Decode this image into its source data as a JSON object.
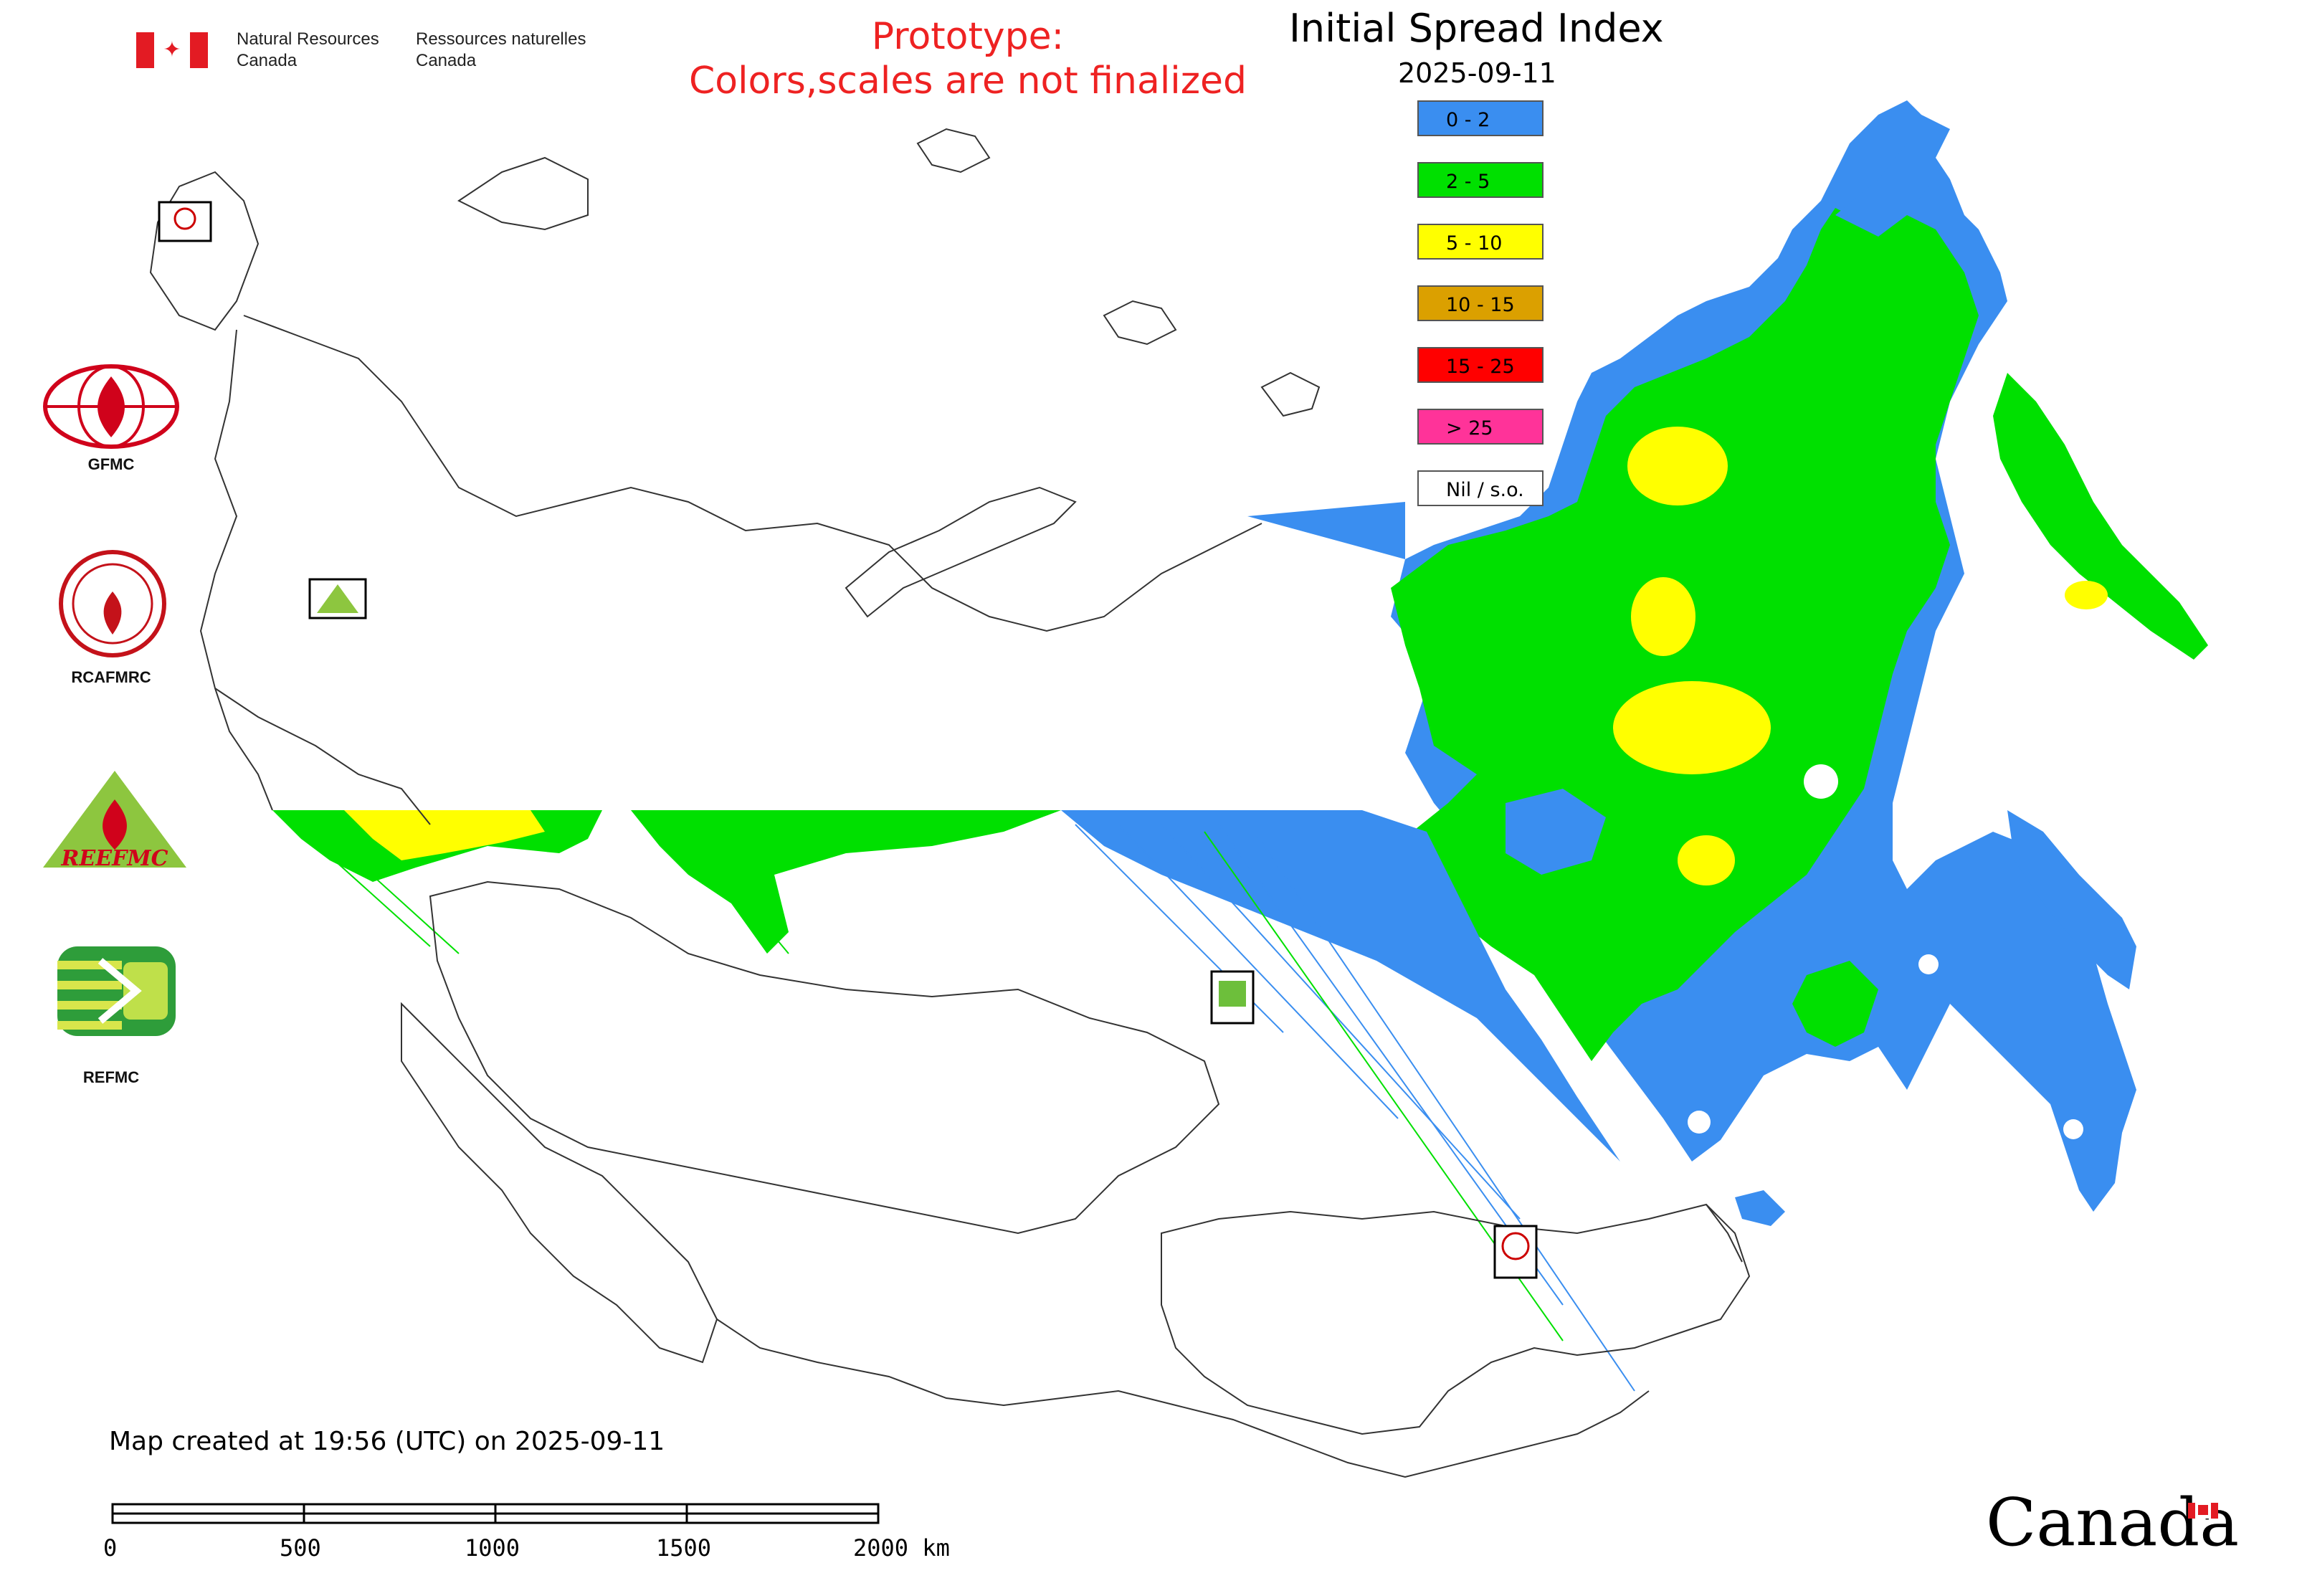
{
  "header": {
    "nrcan_en_line1": "Natural Resources",
    "nrcan_en_line2": "Canada",
    "nrcan_fr_line1": "Ressources naturelles",
    "nrcan_fr_line2": "Canada",
    "prototype_line1": "Prototype:",
    "prototype_line2": "Colors,scales are not finalized",
    "prototype_color": "#ee2222"
  },
  "map_title": {
    "title": "Initial Spread Index",
    "date": "2025-09-11"
  },
  "legend": {
    "items": [
      {
        "label": "0 - 2",
        "color": "#3a8ef0"
      },
      {
        "label": "2 - 5",
        "color": "#00e000"
      },
      {
        "label": "5 - 10",
        "color": "#ffff00"
      },
      {
        "label": "10 - 15",
        "color": "#dba000"
      },
      {
        "label": "15 - 25",
        "color": "#ff0000"
      },
      {
        "label": "> 25",
        "color": "#ff3399"
      },
      {
        "label": "Nil / s.o.",
        "color": "#ffffff"
      }
    ]
  },
  "logos": {
    "gfmc": "GFMC",
    "rcafmrc": "RCAFMRC",
    "reefmc_caption": "REFMC",
    "reefmc_wordmark": "REEFMC"
  },
  "footer": {
    "created": "Map created at 19:56 (UTC) on 2025-09-11",
    "wordmark": "Canada"
  },
  "scale_bar": {
    "labels": [
      "0",
      "500",
      "1000",
      "1500",
      "2000 km"
    ]
  }
}
